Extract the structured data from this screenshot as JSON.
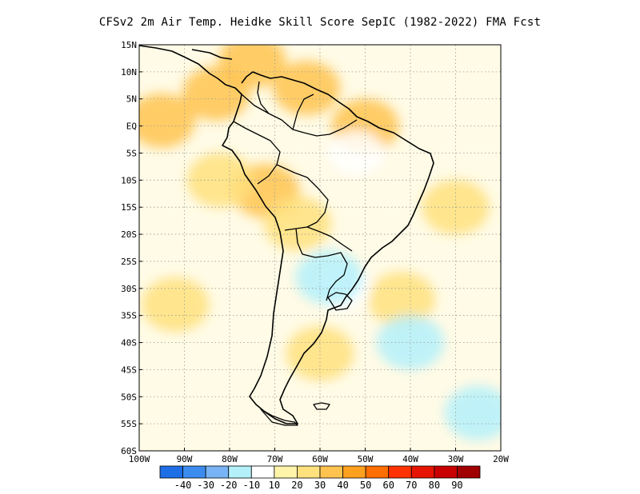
{
  "title": "CFSv2  2m Air Temp. Heidke Skill Score SepIC (1982-2022) FMA Fcst",
  "colors": {
    "land_outline": "#000000",
    "grid": "#9a9a9a",
    "ocean_background": "#fffbe6"
  },
  "axes": {
    "lat_labels": [
      "15N",
      "10N",
      "5N",
      "EQ",
      "5S",
      "10S",
      "15S",
      "20S",
      "25S",
      "30S",
      "35S",
      "40S",
      "45S",
      "50S",
      "55S",
      "60S"
    ],
    "lon_labels": [
      "100W",
      "90W",
      "80W",
      "70W",
      "60W",
      "50W",
      "40W",
      "30W",
      "20W"
    ]
  },
  "colorbar": {
    "labels": [
      "-40",
      "-30",
      "-20",
      "-10",
      "10",
      "20",
      "30",
      "40",
      "50",
      "60",
      "70",
      "80",
      "90"
    ],
    "colors": [
      "#1e6ee6",
      "#3c8cf0",
      "#78b4f5",
      "#b4f0fa",
      "#ffffff",
      "#fff5aa",
      "#ffe17d",
      "#ffc350",
      "#ffa01e",
      "#ff6e00",
      "#ff3200",
      "#e61400",
      "#c80000",
      "#a00000"
    ]
  },
  "chart_data": {
    "type": "heatmap",
    "title": "CFSv2  2m Air Temp. Heidke Skill Score SepIC (1982-2022) FMA Fcst",
    "lon_range": [
      -100,
      -20
    ],
    "lat_range": [
      -60,
      15
    ],
    "regions": [
      {
        "lon": -95,
        "lat": 1,
        "value": 35
      },
      {
        "lon": -83,
        "lat": 6,
        "value": 35
      },
      {
        "lon": -75,
        "lat": 12,
        "value": 30
      },
      {
        "lon": -63,
        "lat": 7,
        "value": 35
      },
      {
        "lon": -50,
        "lat": 0,
        "value": 35
      },
      {
        "lon": -72,
        "lat": -12,
        "value": 35
      },
      {
        "lon": -65,
        "lat": -18,
        "value": 25
      },
      {
        "lon": -82,
        "lat": -10,
        "value": 25
      },
      {
        "lon": -92,
        "lat": -33,
        "value": 25
      },
      {
        "lon": -60,
        "lat": -42,
        "value": 20
      },
      {
        "lon": -42,
        "lat": -32,
        "value": 25
      },
      {
        "lon": -52,
        "lat": -5,
        "value": 5
      },
      {
        "lon": -55,
        "lat": -30,
        "value": 5
      },
      {
        "lon": -30,
        "lat": -15,
        "value": 20
      },
      {
        "lon": -58,
        "lat": -28,
        "value": -15
      },
      {
        "lon": -40,
        "lat": -40,
        "value": -15
      },
      {
        "lon": -25,
        "lat": -53,
        "value": -15
      }
    ]
  }
}
